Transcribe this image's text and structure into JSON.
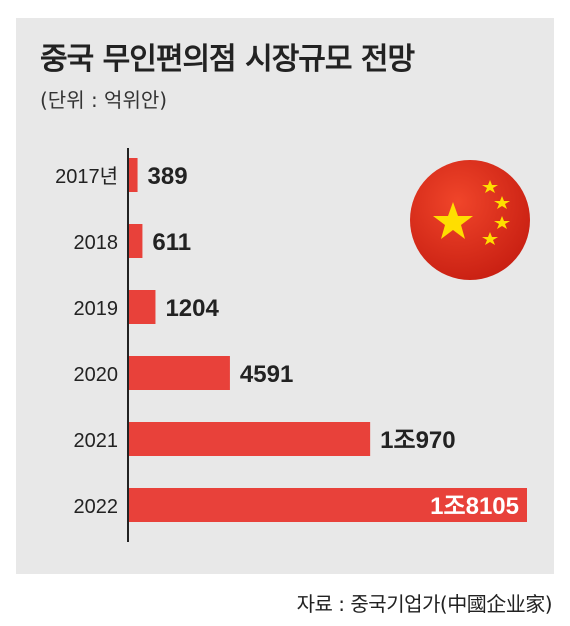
{
  "title": "중국 무인편의점 시장규모 전망",
  "unit_label": "(단위 : 억위안)",
  "source": "자료 : 중국기업가(中國企业家)",
  "colors": {
    "bar": "#e8413a",
    "background": "#e8e8e8",
    "flag_red": "#de2910",
    "flag_star": "#ffde00"
  },
  "flag_icon": "china-flag-icon",
  "chart_data": {
    "type": "bar",
    "orientation": "horizontal",
    "categories": [
      "2017년",
      "2018",
      "2019",
      "2020",
      "2021",
      "2022"
    ],
    "values": [
      389,
      611,
      1204,
      4591,
      10970,
      18105
    ],
    "value_labels": [
      "389",
      "611",
      "1204",
      "4591",
      "1조970",
      "1조8105"
    ],
    "xlim": [
      0,
      18105
    ]
  }
}
